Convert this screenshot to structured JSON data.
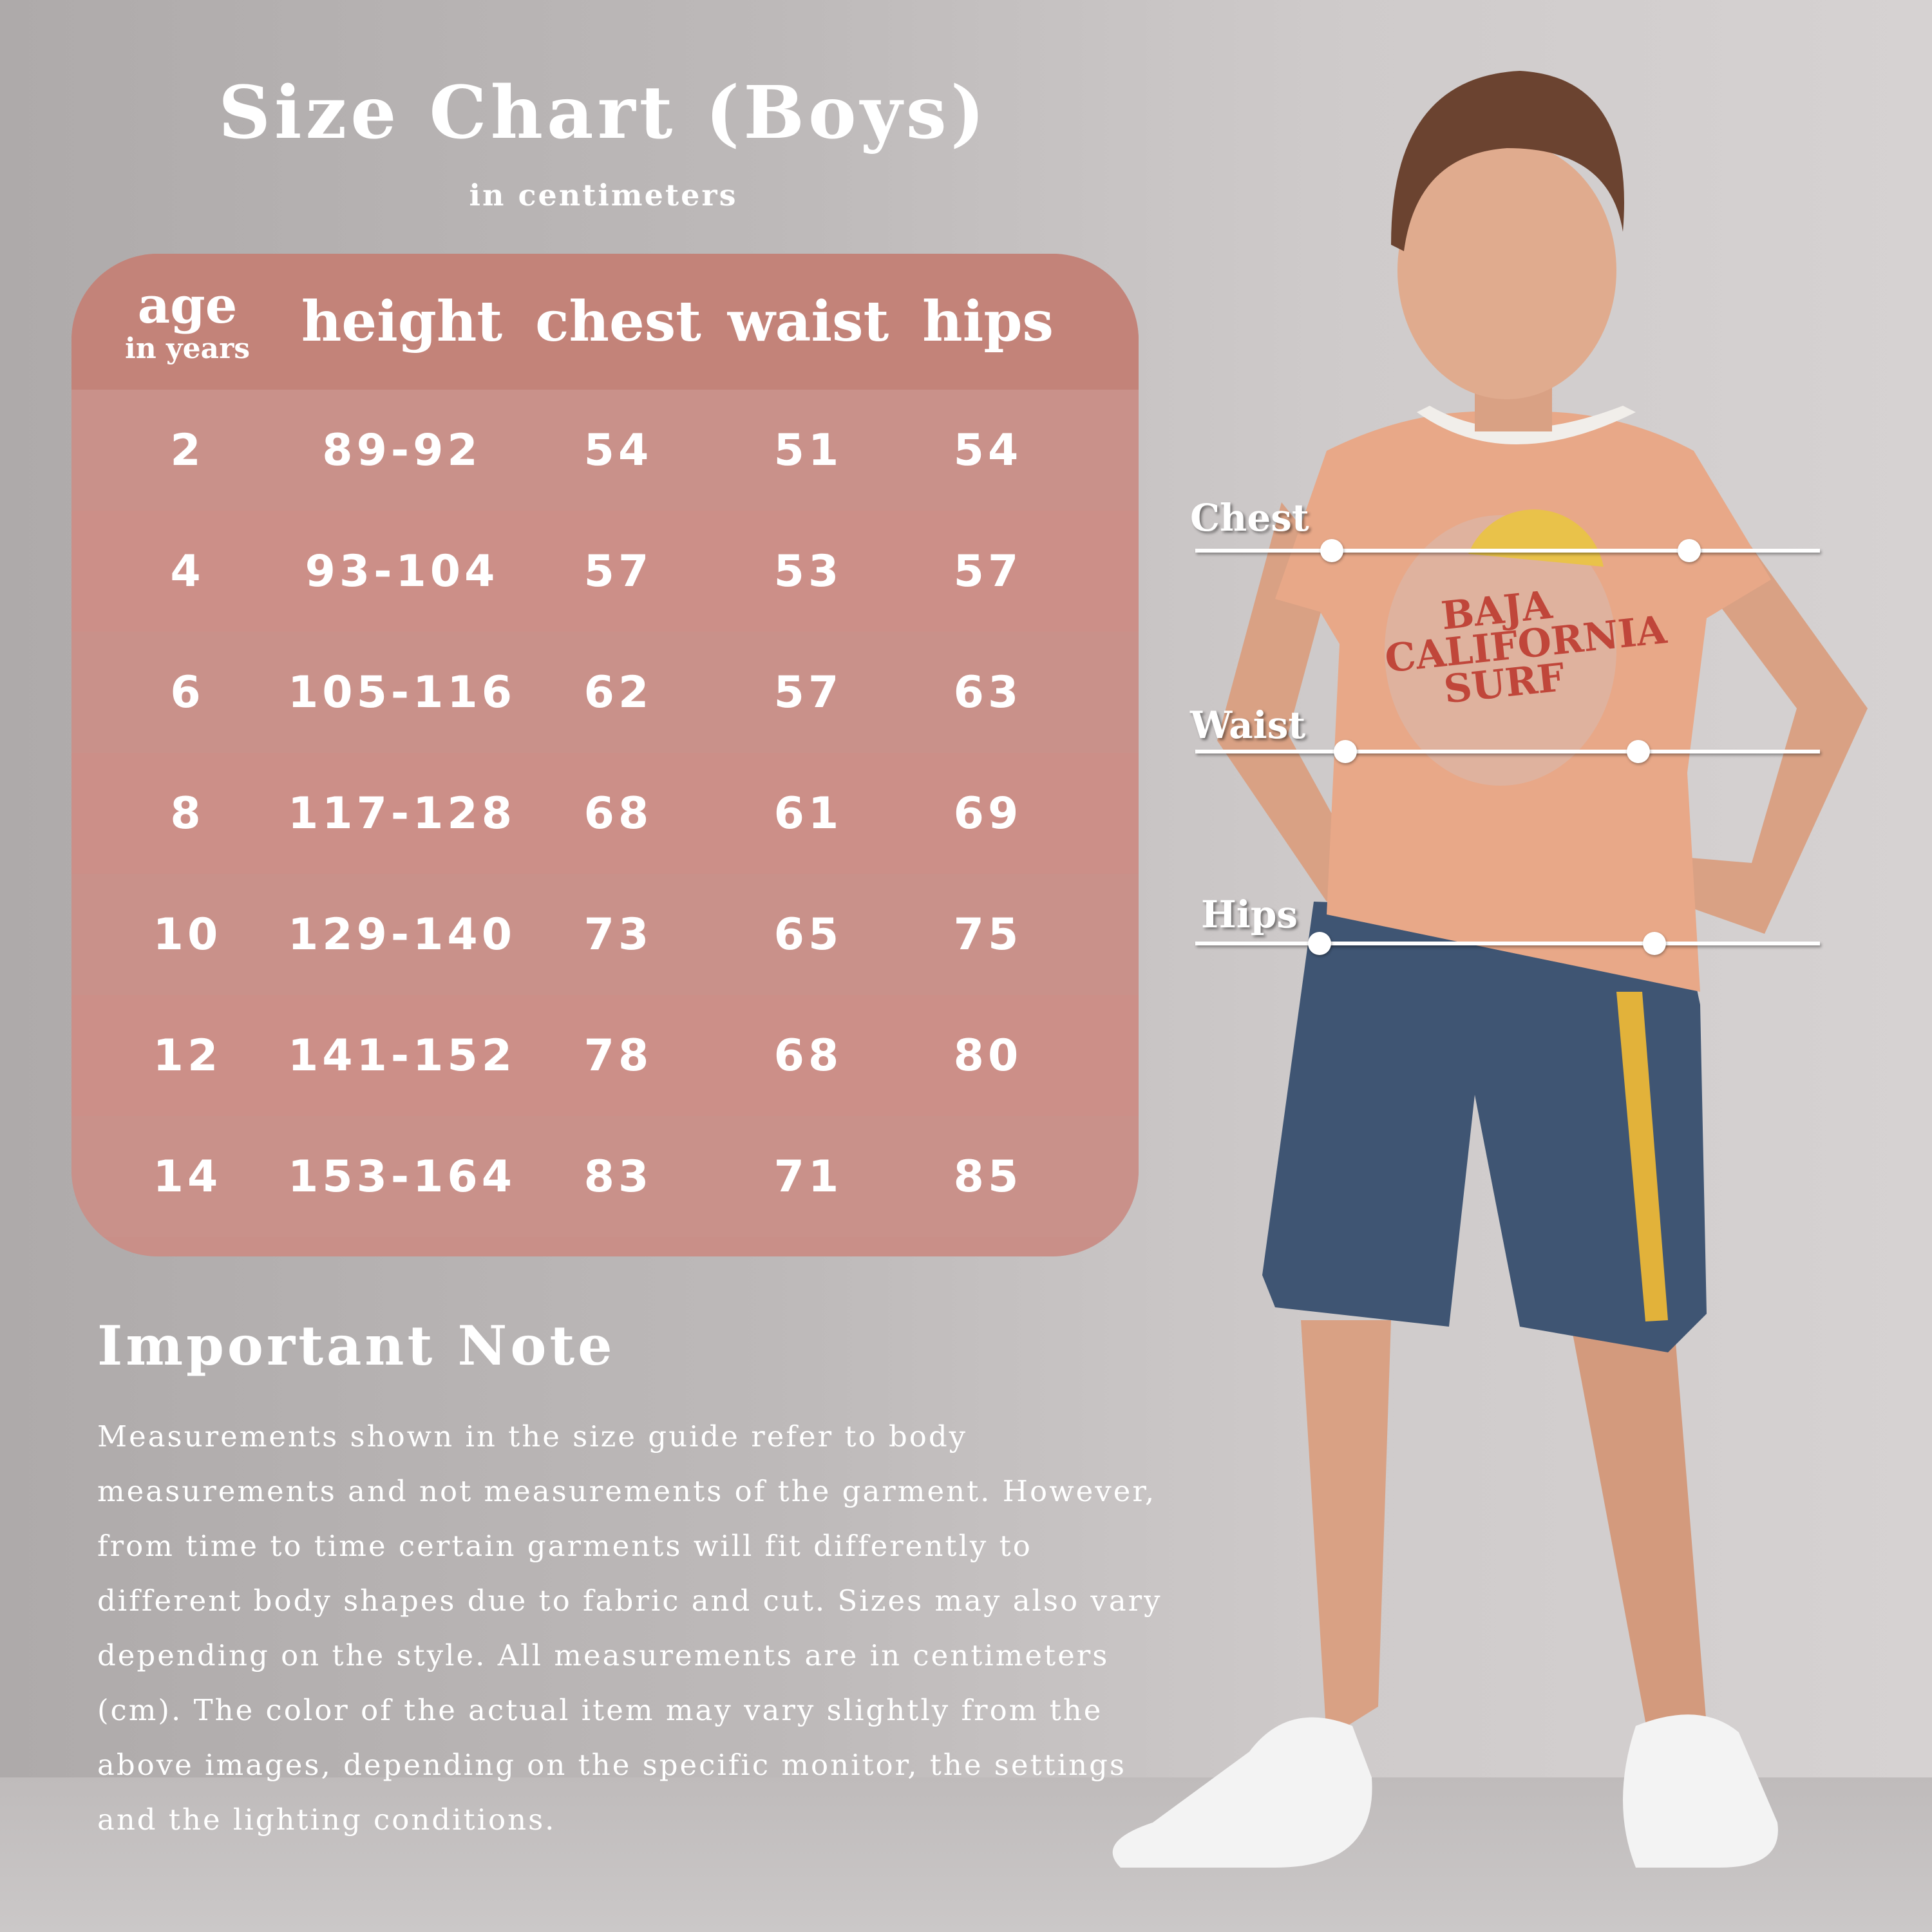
{
  "title": "Size Chart (Boys)",
  "subtitle": "in centimeters",
  "table": {
    "headers": {
      "age": "age",
      "age_unit": "in years",
      "height": "height",
      "chest": "chest",
      "waist": "waist",
      "hips": "hips"
    },
    "rows": [
      {
        "age": "2",
        "height": "89-92",
        "chest": "54",
        "waist": "51",
        "hips": "54"
      },
      {
        "age": "4",
        "height": "93-104",
        "chest": "57",
        "waist": "53",
        "hips": "57"
      },
      {
        "age": "6",
        "height": "105-116",
        "chest": "62",
        "waist": "57",
        "hips": "63"
      },
      {
        "age": "8",
        "height": "117-128",
        "chest": "68",
        "waist": "61",
        "hips": "69"
      },
      {
        "age": "10",
        "height": "129-140",
        "chest": "73",
        "waist": "65",
        "hips": "75"
      },
      {
        "age": "12",
        "height": "141-152",
        "chest": "78",
        "waist": "68",
        "hips": "80"
      },
      {
        "age": "14",
        "height": "153-164",
        "chest": "83",
        "waist": "71",
        "hips": "85"
      }
    ]
  },
  "note": {
    "title": "Important Note",
    "body": "Measurements shown in the size guide refer to body measurements and not measurements of the garment. However, from time to time certain garments will fit differently to different body shapes due to fabric and cut. Sizes may also vary depending on the style. All measurements are in centimeters (cm). The color of the actual item may vary slightly from the above images, depending on the specific monitor, the settings and the lighting conditions."
  },
  "measure_labels": {
    "chest": "Chest",
    "waist": "Waist",
    "hips": "Hips"
  },
  "shirt_print": "BAJA CALIFORNIA SURF",
  "colors": {
    "table": "#c98f88",
    "header": "#c38379",
    "shirt": "#e8a888",
    "shorts": "#3f5573",
    "stripe": "#e2b23a"
  }
}
